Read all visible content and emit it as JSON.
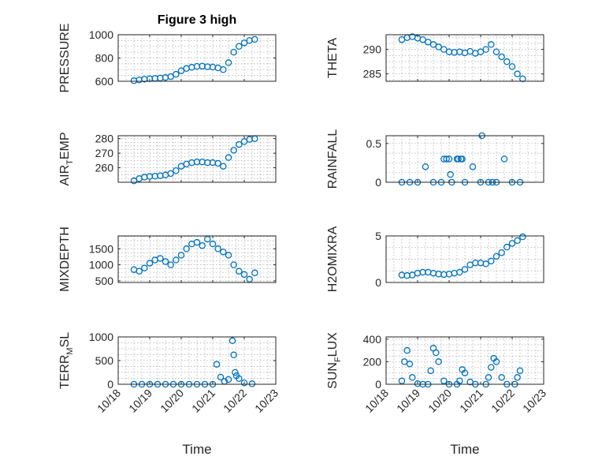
{
  "figure_title": "Figure 3 high",
  "marker_color": "#0072BD",
  "x_axis": {
    "label": "Time",
    "ticks": [
      "10/18",
      "10/19",
      "10/20",
      "10/21",
      "10/22",
      "10/23"
    ]
  },
  "chart_data": [
    {
      "type": "scatter",
      "ylabel": "PRESSURE",
      "ylabel_main": "PRESSURE",
      "ylabel_sub": "",
      "ylabel_tail": "",
      "title": "Figure 3 high",
      "xlim": [
        "10/18",
        "10/23"
      ],
      "ylim": [
        600,
        1000
      ],
      "yticks": [
        600,
        800,
        1000
      ],
      "grid": true,
      "x": [
        "10/18 12:00",
        "10/18 16:00",
        "10/18 20:00",
        "10/19 00:00",
        "10/19 04:00",
        "10/19 08:00",
        "10/19 12:00",
        "10/19 16:00",
        "10/19 20:00",
        "10/20 00:00",
        "10/20 04:00",
        "10/20 08:00",
        "10/20 12:00",
        "10/20 16:00",
        "10/20 20:00",
        "10/21 00:00",
        "10/21 04:00",
        "10/21 08:00",
        "10/21 12:00",
        "10/21 16:00",
        "10/21 20:00",
        "10/22 00:00",
        "10/22 04:00",
        "10/22 08:00"
      ],
      "y": [
        605,
        612,
        618,
        622,
        625,
        628,
        632,
        640,
        660,
        690,
        710,
        720,
        728,
        730,
        725,
        722,
        715,
        700,
        760,
        850,
        900,
        930,
        950,
        960
      ]
    },
    {
      "type": "scatter",
      "ylabel": "THETA",
      "ylabel_main": "THETA",
      "ylabel_sub": "",
      "ylabel_tail": "",
      "xlim": [
        "10/18",
        "10/23"
      ],
      "ylim": [
        283.5,
        293
      ],
      "yticks": [
        285,
        290
      ],
      "grid": true,
      "x": [
        "10/18 12:00",
        "10/18 16:00",
        "10/18 20:00",
        "10/19 00:00",
        "10/19 04:00",
        "10/19 08:00",
        "10/19 12:00",
        "10/19 16:00",
        "10/19 20:00",
        "10/20 00:00",
        "10/20 04:00",
        "10/20 08:00",
        "10/20 12:00",
        "10/20 16:00",
        "10/20 20:00",
        "10/21 00:00",
        "10/21 04:00",
        "10/21 08:00",
        "10/21 12:00",
        "10/21 16:00",
        "10/21 20:00",
        "10/22 00:00",
        "10/22 04:00",
        "10/22 08:00"
      ],
      "y": [
        292,
        292.4,
        292.6,
        292.3,
        292,
        291.5,
        291,
        290.5,
        290,
        289.5,
        289.4,
        289.5,
        289.3,
        289.6,
        289.2,
        289.5,
        290,
        291,
        289.5,
        288.5,
        287.5,
        286.5,
        285,
        284
      ]
    },
    {
      "type": "scatter",
      "ylabel": "AIR_TEMP",
      "ylabel_main": "AIR",
      "ylabel_sub": "T",
      "ylabel_tail": "EMP",
      "xlim": [
        "10/18",
        "10/23"
      ],
      "ylim": [
        250,
        282
      ],
      "yticks": [
        260,
        270,
        280
      ],
      "grid": true,
      "x": [
        "10/18 12:00",
        "10/18 16:00",
        "10/18 20:00",
        "10/19 00:00",
        "10/19 04:00",
        "10/19 08:00",
        "10/19 12:00",
        "10/19 16:00",
        "10/19 20:00",
        "10/20 00:00",
        "10/20 04:00",
        "10/20 08:00",
        "10/20 12:00",
        "10/20 16:00",
        "10/20 20:00",
        "10/21 00:00",
        "10/21 04:00",
        "10/21 08:00",
        "10/21 12:00",
        "10/21 16:00",
        "10/21 20:00",
        "10/22 00:00",
        "10/22 04:00",
        "10/22 08:00"
      ],
      "y": [
        251,
        252.5,
        253.5,
        254,
        254.2,
        254.5,
        255,
        256,
        258,
        261,
        262.5,
        263.5,
        264,
        264,
        263.5,
        263.5,
        263,
        261,
        267,
        272,
        276,
        278,
        279.5,
        280
      ]
    },
    {
      "type": "scatter",
      "ylabel": "RAINFALL",
      "ylabel_main": "RAINFALL",
      "ylabel_sub": "",
      "ylabel_tail": "",
      "xlim": [
        "10/18",
        "10/23"
      ],
      "ylim": [
        0,
        0.6
      ],
      "yticks": [
        0,
        0.5
      ],
      "grid": true,
      "x": [
        "10/18 12:00",
        "10/18 18:00",
        "10/19 00:00",
        "10/19 06:00",
        "10/19 12:00",
        "10/19 18:00",
        "10/19 20:00",
        "10/19 22:00",
        "10/20 00:00",
        "10/20 01:00",
        "10/20 02:00",
        "10/20 06:00",
        "10/20 07:00",
        "10/20 09:00",
        "10/20 10:00",
        "10/20 12:00",
        "10/20 18:00",
        "10/21 00:00",
        "10/21 01:00",
        "10/21 06:00",
        "10/21 09:00",
        "10/21 12:00",
        "10/21 18:00",
        "10/22 00:00",
        "10/22 06:00"
      ],
      "y": [
        0,
        0,
        0,
        0.2,
        0,
        0,
        0.3,
        0.3,
        0.3,
        0.1,
        0,
        0.3,
        0.3,
        0.3,
        0.3,
        0,
        0.2,
        0,
        0.6,
        0,
        0,
        0,
        0.3,
        0,
        0
      ]
    },
    {
      "type": "scatter",
      "ylabel": "MIXDEPTH",
      "ylabel_main": "MIXDEPTH",
      "ylabel_sub": "",
      "ylabel_tail": "",
      "xlim": [
        "10/18",
        "10/23"
      ],
      "ylim": [
        450,
        1900
      ],
      "yticks": [
        500,
        1000,
        1500
      ],
      "grid": true,
      "x": [
        "10/18 12:00",
        "10/18 16:00",
        "10/18 20:00",
        "10/19 00:00",
        "10/19 04:00",
        "10/19 08:00",
        "10/19 12:00",
        "10/19 16:00",
        "10/19 20:00",
        "10/20 00:00",
        "10/20 04:00",
        "10/20 08:00",
        "10/20 12:00",
        "10/20 16:00",
        "10/20 20:00",
        "10/21 00:00",
        "10/21 04:00",
        "10/21 08:00",
        "10/21 12:00",
        "10/21 16:00",
        "10/21 20:00",
        "10/22 00:00",
        "10/22 04:00",
        "10/22 08:00"
      ],
      "y": [
        850,
        800,
        900,
        1050,
        1150,
        1200,
        1100,
        1000,
        1150,
        1300,
        1500,
        1650,
        1700,
        1600,
        1800,
        1650,
        1500,
        1400,
        1300,
        1000,
        800,
        700,
        550,
        750
      ]
    },
    {
      "type": "scatter",
      "ylabel": "H2OMIXRA",
      "ylabel_main": "H2OMIXRA",
      "ylabel_sub": "",
      "ylabel_tail": "",
      "xlim": [
        "10/18",
        "10/23"
      ],
      "ylim": [
        0,
        5
      ],
      "yticks": [
        0,
        5
      ],
      "grid": true,
      "x": [
        "10/18 12:00",
        "10/18 16:00",
        "10/18 20:00",
        "10/19 00:00",
        "10/19 04:00",
        "10/19 08:00",
        "10/19 12:00",
        "10/19 16:00",
        "10/19 20:00",
        "10/20 00:00",
        "10/20 04:00",
        "10/20 08:00",
        "10/20 12:00",
        "10/20 16:00",
        "10/20 20:00",
        "10/21 00:00",
        "10/21 04:00",
        "10/21 08:00",
        "10/21 12:00",
        "10/21 16:00",
        "10/21 20:00",
        "10/22 00:00",
        "10/22 04:00",
        "10/22 08:00"
      ],
      "y": [
        0.8,
        0.75,
        0.8,
        1.0,
        1.1,
        1.1,
        1.0,
        0.9,
        0.85,
        0.9,
        1.0,
        1.1,
        1.4,
        1.9,
        2.1,
        2.1,
        2.0,
        2.3,
        2.8,
        3.2,
        3.8,
        4.2,
        4.5,
        4.9
      ]
    },
    {
      "type": "scatter",
      "ylabel": "TERR_MSL",
      "ylabel_main": "TERR",
      "ylabel_sub": "M",
      "ylabel_tail": "SL",
      "xlim": [
        "10/18",
        "10/23"
      ],
      "ylim": [
        0,
        1000
      ],
      "yticks": [
        0,
        500,
        1000
      ],
      "grid": true,
      "x": [
        "10/18 12:00",
        "10/18 18:00",
        "10/19 00:00",
        "10/19 06:00",
        "10/19 12:00",
        "10/19 18:00",
        "10/20 00:00",
        "10/20 06:00",
        "10/20 12:00",
        "10/20 18:00",
        "10/21 00:00",
        "10/21 03:00",
        "10/21 06:00",
        "10/21 09:00",
        "10/21 12:00",
        "10/21 15:00",
        "10/21 16:00",
        "10/21 17:00",
        "10/21 18:00",
        "10/21 20:00",
        "10/22 00:00",
        "10/22 06:00"
      ],
      "y": [
        0,
        0,
        0,
        0,
        0,
        0,
        0,
        0,
        0,
        0,
        0,
        420,
        150,
        60,
        100,
        920,
        620,
        250,
        180,
        120,
        30,
        10
      ]
    },
    {
      "type": "scatter",
      "ylabel": "SUN_FLUX",
      "ylabel_main": "SUN",
      "ylabel_sub": "F",
      "ylabel_tail": "LUX",
      "xlim": [
        "10/18",
        "10/23"
      ],
      "ylim": [
        0,
        420
      ],
      "yticks": [
        0,
        200,
        400
      ],
      "grid": true,
      "x": [
        "10/18 12:00",
        "10/18 14:00",
        "10/18 16:00",
        "10/18 18:00",
        "10/18 20:00",
        "10/19 00:00",
        "10/19 04:00",
        "10/19 08:00",
        "10/19 10:00",
        "10/19 12:00",
        "10/19 14:00",
        "10/19 16:00",
        "10/19 20:00",
        "10/20 00:00",
        "10/20 06:00",
        "10/20 08:00",
        "10/20 10:00",
        "10/20 12:00",
        "10/20 16:00",
        "10/20 20:00",
        "10/21 04:00",
        "10/21 06:00",
        "10/21 08:00",
        "10/21 10:00",
        "10/21 12:00",
        "10/21 16:00",
        "10/21 20:00",
        "10/22 02:00",
        "10/22 04:00",
        "10/22 06:00"
      ],
      "y": [
        30,
        200,
        300,
        180,
        60,
        5,
        0,
        0,
        120,
        320,
        280,
        200,
        30,
        0,
        0,
        30,
        130,
        100,
        20,
        0,
        0,
        60,
        150,
        230,
        200,
        60,
        0,
        0,
        60,
        120
      ]
    }
  ]
}
